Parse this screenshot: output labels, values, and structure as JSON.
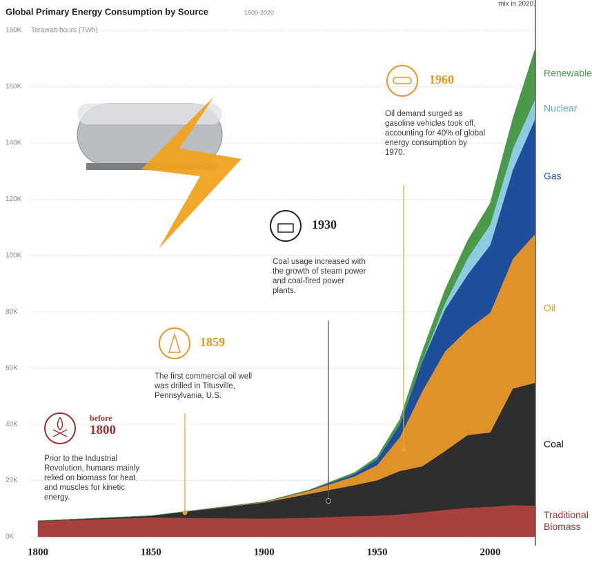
{
  "chart_data": {
    "type": "stacked-area",
    "title": "Global Primary Energy Consumption by Source",
    "subtitle": "1800-2020",
    "y_label": "Terawatt-hours (TWh)",
    "top_note": "mix in 2020.",
    "x": [
      1800,
      1850,
      1900,
      1920,
      1940,
      1950,
      1960,
      1970,
      1980,
      1990,
      2000,
      2010,
      2020
    ],
    "xlim": [
      1800,
      2020
    ],
    "xticks": [
      1800,
      1850,
      1900,
      1950,
      2000
    ],
    "ylim": [
      0,
      180000
    ],
    "yticks": [
      {
        "value": 0,
        "label": "0K"
      },
      {
        "value": 20000,
        "label": "20K"
      },
      {
        "value": 40000,
        "label": "40K"
      },
      {
        "value": 60000,
        "label": "60K"
      },
      {
        "value": 80000,
        "label": "80K"
      },
      {
        "value": 100000,
        "label": "100K"
      },
      {
        "value": 120000,
        "label": "120K"
      },
      {
        "value": 140000,
        "label": "140K"
      },
      {
        "value": 160000,
        "label": "160K"
      },
      {
        "value": 180000,
        "label": "180K"
      }
    ],
    "grid": true,
    "series": [
      {
        "name": "Traditional Biomass",
        "color": "#a8413e",
        "label_color": "#a3302c",
        "values": [
          5600,
          6900,
          6500,
          6800,
          7400,
          7500,
          8000,
          8700,
          9600,
          10300,
          10700,
          11300,
          11100
        ]
      },
      {
        "name": "Coal",
        "color": "#2e2e2e",
        "label_color": "#111111",
        "values": [
          100,
          600,
          5700,
          8500,
          11000,
          12600,
          15400,
          16400,
          20900,
          25900,
          26400,
          41400,
          43700
        ]
      },
      {
        "name": "Oil",
        "color": "#e0922a",
        "label_color": "#e8961e",
        "values": [
          0,
          0,
          200,
          1100,
          3100,
          5400,
          12000,
          26700,
          35400,
          37500,
          42600,
          46100,
          53000
        ]
      },
      {
        "name": "Gas",
        "color": "#1f4e9c",
        "label_color": "#1f5aa6",
        "values": [
          0,
          0,
          100,
          200,
          900,
          2100,
          4500,
          10600,
          15000,
          19500,
          24000,
          31600,
          41000
        ]
      },
      {
        "name": "Nuclear",
        "color": "#8ecae0",
        "label_color": "#5aa9c9",
        "values": [
          0,
          0,
          0,
          0,
          0,
          0,
          0,
          200,
          2000,
          5800,
          7300,
          7500,
          7000
        ]
      },
      {
        "name": "Renewable",
        "color": "#4a9a4a",
        "label_color": "#4f9b4e",
        "values": [
          0,
          0,
          0,
          100,
          500,
          900,
          1800,
          3400,
          4900,
          6300,
          7600,
          10800,
          18000
        ]
      }
    ],
    "annotations": [
      {
        "year": "1960",
        "text": "Oil demand surged as gasoline vehicles took off, accounting for 40% of global energy consumption by 1970."
      },
      {
        "year": "1930",
        "text": "Coal usage increased with the growth of steam power and coal-fired power plants."
      },
      {
        "year": "1859",
        "text": "The first commercial oil well was drilled in Titusville, Pennsylvania, U.S."
      },
      {
        "prefix": "before",
        "year": "1800",
        "text": "Prior to the Industrial Revolution, humans mainly relied on biomass for heat and muscles for kinetic energy."
      }
    ]
  }
}
